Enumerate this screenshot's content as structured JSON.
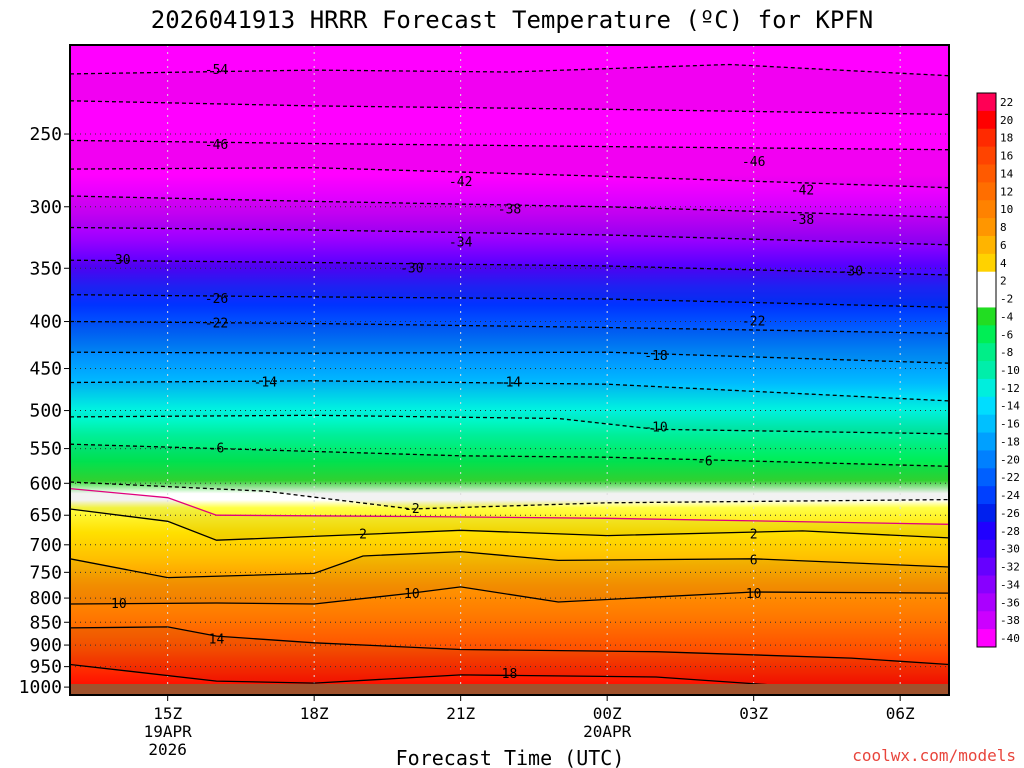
{
  "chart_data": {
    "type": "heatmap",
    "title": "2026041913 HRRR Forecast Temperature (ºC) for KPFN",
    "xlabel": "Forecast Time (UTC)",
    "ylabel": "",
    "x_ticks": [
      {
        "hour": 15,
        "lines": [
          "15Z",
          "19APR",
          "2026"
        ]
      },
      {
        "hour": 18,
        "lines": [
          "18Z"
        ]
      },
      {
        "hour": 21,
        "lines": [
          "21Z"
        ]
      },
      {
        "hour": 24,
        "lines": [
          "00Z",
          "20APR"
        ]
      },
      {
        "hour": 27,
        "lines": [
          "03Z"
        ]
      },
      {
        "hour": 30,
        "lines": [
          "06Z"
        ]
      }
    ],
    "xlim": [
      13,
      31
    ],
    "y_ticks": [
      250,
      300,
      350,
      400,
      450,
      500,
      550,
      600,
      650,
      700,
      750,
      800,
      850,
      900,
      950,
      1000
    ],
    "ylim": [
      1020,
      200
    ],
    "y_scale": "log-pressure",
    "colorbar": {
      "levels": [
        22,
        20,
        18,
        16,
        14,
        12,
        10,
        8,
        6,
        4,
        2,
        -2,
        -4,
        -6,
        -8,
        -10,
        -12,
        -14,
        -16,
        -18,
        -20,
        -22,
        -24,
        -26,
        -28,
        -30,
        -32,
        -34,
        -36,
        -38,
        -40
      ],
      "labels": [
        "22",
        "20",
        "18",
        "16",
        "14",
        "12",
        "10",
        "8",
        "6",
        "4",
        "2",
        "-2",
        "-4",
        "-6",
        "-8",
        "-10",
        "-12",
        "-14",
        "-16",
        "-18",
        "-20",
        "-22",
        "-24",
        "-26",
        "-28",
        "-30",
        "-32",
        "-34",
        "-36",
        "-38",
        "-40"
      ],
      "colors": [
        "#ff0055",
        "#ff0000",
        "#ff2a00",
        "#ff4400",
        "#ff5a00",
        "#ff6e00",
        "#ff8200",
        "#ff9600",
        "#ffb400",
        "#ffd200",
        "#ffffff",
        "#ffffff",
        "#22dd22",
        "#00ee55",
        "#00ee88",
        "#00eeaa",
        "#00eedd",
        "#00ddff",
        "#00c0ff",
        "#00a0ff",
        "#0080ff",
        "#0060ff",
        "#0040ff",
        "#0020ee",
        "#2000ff",
        "#4400ff",
        "#6600ff",
        "#8800ff",
        "#aa00ff",
        "#cc00ff",
        "#ff00ff"
      ]
    },
    "isotherms": [
      {
        "value": -54,
        "label": "-54",
        "style": "dashed",
        "points": [
          [
            13,
            215
          ],
          [
            18,
            213
          ],
          [
            22,
            214
          ],
          [
            26.5,
            210
          ],
          [
            31,
            216
          ]
        ],
        "label_at": [
          [
            16,
            213
          ]
        ]
      },
      {
        "value": -50,
        "label": "",
        "style": "dashed",
        "points": [
          [
            13,
            230
          ],
          [
            18,
            233
          ],
          [
            24,
            235
          ],
          [
            31,
            238
          ]
        ],
        "label_at": []
      },
      {
        "value": -46,
        "label": "-46",
        "style": "dashed",
        "points": [
          [
            13,
            254
          ],
          [
            18,
            256
          ],
          [
            24,
            258
          ],
          [
            31,
            260
          ]
        ],
        "label_at": [
          [
            16,
            257
          ],
          [
            27,
            268
          ]
        ]
      },
      {
        "value": -42,
        "label": "-42",
        "style": "dashed",
        "points": [
          [
            13,
            273
          ],
          [
            18,
            272
          ],
          [
            24,
            278
          ],
          [
            31,
            286
          ]
        ],
        "label_at": [
          [
            21,
            282
          ],
          [
            28,
            288
          ]
        ]
      },
      {
        "value": -38,
        "label": "-38",
        "style": "dashed",
        "points": [
          [
            13,
            292
          ],
          [
            18,
            296
          ],
          [
            24,
            300
          ],
          [
            31,
            308
          ]
        ],
        "label_at": [
          [
            22,
            302
          ],
          [
            28,
            310
          ]
        ]
      },
      {
        "value": -34,
        "label": "-34",
        "style": "dashed",
        "points": [
          [
            13,
            316
          ],
          [
            18,
            318
          ],
          [
            24,
            322
          ],
          [
            31,
            330
          ]
        ],
        "label_at": [
          [
            21,
            328
          ]
        ]
      },
      {
        "value": -30,
        "label": "-30",
        "style": "dashed",
        "points": [
          [
            13,
            343
          ],
          [
            18,
            345
          ],
          [
            24,
            348
          ],
          [
            31,
            356
          ]
        ],
        "label_at": [
          [
            14,
            343
          ],
          [
            20,
            350
          ],
          [
            29,
            353
          ]
        ]
      },
      {
        "value": -26,
        "label": "-26",
        "style": "dashed",
        "points": [
          [
            13,
            374
          ],
          [
            18,
            376
          ],
          [
            24,
            378
          ],
          [
            31,
            386
          ]
        ],
        "label_at": [
          [
            16,
            378
          ]
        ]
      },
      {
        "value": -22,
        "label": "-22",
        "style": "dashed",
        "points": [
          [
            13,
            400
          ],
          [
            18,
            402
          ],
          [
            24,
            406
          ],
          [
            31,
            412
          ]
        ],
        "label_at": [
          [
            16,
            402
          ],
          [
            27,
            400
          ]
        ]
      },
      {
        "value": -18,
        "label": "-18",
        "style": "dashed",
        "points": [
          [
            13,
            432
          ],
          [
            18,
            433
          ],
          [
            24,
            432
          ],
          [
            31,
            444
          ]
        ],
        "label_at": [
          [
            25,
            436
          ]
        ]
      },
      {
        "value": -14,
        "label": "-14",
        "style": "dashed",
        "points": [
          [
            13,
            466
          ],
          [
            18,
            464
          ],
          [
            24,
            468
          ],
          [
            31,
            488
          ]
        ],
        "label_at": [
          [
            17,
            466
          ],
          [
            22,
            466
          ]
        ]
      },
      {
        "value": -10,
        "label": "-10",
        "style": "dashed",
        "points": [
          [
            13,
            508
          ],
          [
            18,
            506
          ],
          [
            23,
            510
          ],
          [
            25,
            524
          ],
          [
            31,
            530
          ]
        ],
        "label_at": [
          [
            25,
            522
          ]
        ]
      },
      {
        "value": -6,
        "label": "-6",
        "style": "dashed",
        "points": [
          [
            13,
            544
          ],
          [
            17,
            552
          ],
          [
            21,
            560
          ],
          [
            24,
            562
          ],
          [
            31,
            575
          ]
        ],
        "label_at": [
          [
            16,
            550
          ],
          [
            26,
            568
          ]
        ]
      },
      {
        "value": -2,
        "label": "-2",
        "style": "dashed",
        "points": [
          [
            13,
            598
          ],
          [
            17,
            612
          ],
          [
            20,
            640
          ],
          [
            24,
            630
          ],
          [
            31,
            625
          ]
        ],
        "label_at": [
          [
            20,
            640
          ]
        ]
      },
      {
        "value": 0,
        "label": "",
        "style": "solid-magenta",
        "points": [
          [
            13,
            608
          ],
          [
            15,
            622
          ],
          [
            16,
            650
          ],
          [
            20,
            652
          ],
          [
            24,
            655
          ],
          [
            31,
            665
          ]
        ],
        "label_at": []
      },
      {
        "value": 2,
        "label": "2",
        "style": "solid",
        "points": [
          [
            13,
            640
          ],
          [
            15,
            660
          ],
          [
            16,
            692
          ],
          [
            19,
            682
          ],
          [
            21,
            675
          ],
          [
            24,
            684
          ],
          [
            28,
            676
          ],
          [
            31,
            688
          ]
        ],
        "label_at": [
          [
            19,
            682
          ],
          [
            27,
            682
          ]
        ]
      },
      {
        "value": 6,
        "label": "6",
        "style": "solid",
        "points": [
          [
            13,
            725
          ],
          [
            15,
            760
          ],
          [
            18,
            752
          ],
          [
            19,
            720
          ],
          [
            21,
            712
          ],
          [
            23,
            728
          ],
          [
            27,
            725
          ],
          [
            31,
            740
          ]
        ],
        "label_at": [
          [
            27,
            728
          ]
        ]
      },
      {
        "value": 10,
        "label": "10",
        "style": "solid",
        "points": [
          [
            13,
            812
          ],
          [
            16,
            810
          ],
          [
            18,
            812
          ],
          [
            20,
            790
          ],
          [
            21,
            778
          ],
          [
            23,
            808
          ],
          [
            27,
            788
          ],
          [
            31,
            790
          ]
        ],
        "label_at": [
          [
            14,
            812
          ],
          [
            20,
            792
          ],
          [
            27,
            792
          ]
        ]
      },
      {
        "value": 14,
        "label": "14",
        "style": "solid",
        "points": [
          [
            13,
            862
          ],
          [
            15,
            860
          ],
          [
            16,
            880
          ],
          [
            18,
            895
          ],
          [
            21,
            910
          ],
          [
            25,
            915
          ],
          [
            29,
            930
          ],
          [
            31,
            945
          ]
        ],
        "label_at": [
          [
            16,
            888
          ]
        ]
      },
      {
        "value": 18,
        "label": "18",
        "style": "solid",
        "points": [
          [
            13,
            945
          ],
          [
            16,
            985
          ],
          [
            18,
            990
          ],
          [
            21,
            970
          ],
          [
            25,
            975
          ],
          [
            28,
            1000
          ],
          [
            31,
            1005
          ]
        ],
        "label_at": [
          [
            22,
            968
          ]
        ]
      }
    ]
  },
  "credit": "coolwx.com/models"
}
